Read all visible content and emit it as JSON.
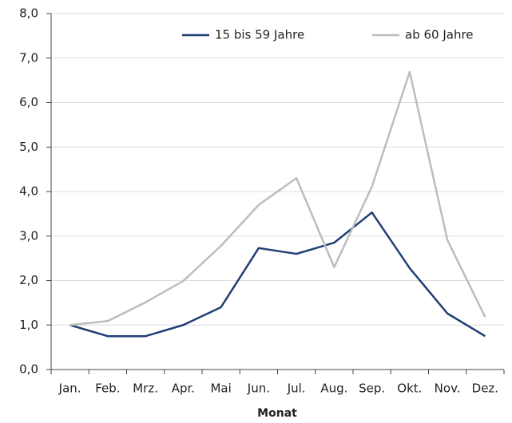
{
  "chart_data": {
    "type": "line",
    "x_label": "Monat",
    "categories": [
      "Jan.",
      "Feb.",
      "Mrz.",
      "Apr.",
      "Mai",
      "Jun.",
      "Jul.",
      "Aug.",
      "Sep.",
      "Okt.",
      "Nov.",
      "Dez."
    ],
    "series": [
      {
        "name": "15 bis 59 Jahre",
        "color": "#1f3f73",
        "values": [
          1.0,
          0.75,
          0.75,
          1.0,
          1.4,
          2.73,
          2.6,
          2.85,
          3.53,
          2.28,
          1.26,
          0.75
        ]
      },
      {
        "name": "ab 60 Jahre",
        "color": "#bdbdbd",
        "values": [
          1.0,
          1.09,
          1.51,
          1.99,
          2.78,
          3.7,
          4.3,
          2.3,
          4.11,
          6.69,
          2.91,
          1.18
        ]
      }
    ],
    "ylim": [
      0,
      8
    ],
    "yticks": [
      {
        "value": 0,
        "label": "0,0"
      },
      {
        "value": 1,
        "label": "1,0"
      },
      {
        "value": 2,
        "label": "2,0"
      },
      {
        "value": 3,
        "label": "3,0"
      },
      {
        "value": 4,
        "label": "4,0"
      },
      {
        "value": 5,
        "label": "5,0"
      },
      {
        "value": 6,
        "label": "6,0"
      },
      {
        "value": 7,
        "label": "7,0"
      },
      {
        "value": 8,
        "label": "8,0"
      }
    ],
    "grid": true,
    "legend": "top"
  }
}
